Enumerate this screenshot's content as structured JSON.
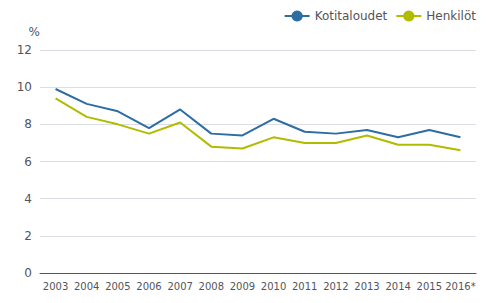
{
  "chart_data": {
    "type": "line",
    "categories": [
      "2003",
      "2004",
      "2005",
      "2006",
      "2007",
      "2008",
      "2009",
      "2010",
      "2011",
      "2012",
      "2013",
      "2014",
      "2015",
      "2016*"
    ],
    "series": [
      {
        "name": "Kotitaloudet",
        "color": "#2e6da4",
        "values": [
          9.9,
          9.1,
          8.7,
          7.8,
          8.8,
          7.5,
          7.4,
          8.3,
          7.6,
          7.5,
          7.7,
          7.3,
          7.7,
          7.3
        ]
      },
      {
        "name": "Henkilöt",
        "color": "#b0bc00",
        "values": [
          9.4,
          8.4,
          8.0,
          7.5,
          8.1,
          6.8,
          6.7,
          7.3,
          7.0,
          7.0,
          7.4,
          6.9,
          6.9,
          6.6
        ]
      }
    ],
    "ylabel": "%",
    "ylim": [
      0,
      12
    ],
    "yticks": [
      0,
      2,
      4,
      6,
      8,
      10,
      12
    ],
    "grid": true,
    "legend": "upper right"
  }
}
